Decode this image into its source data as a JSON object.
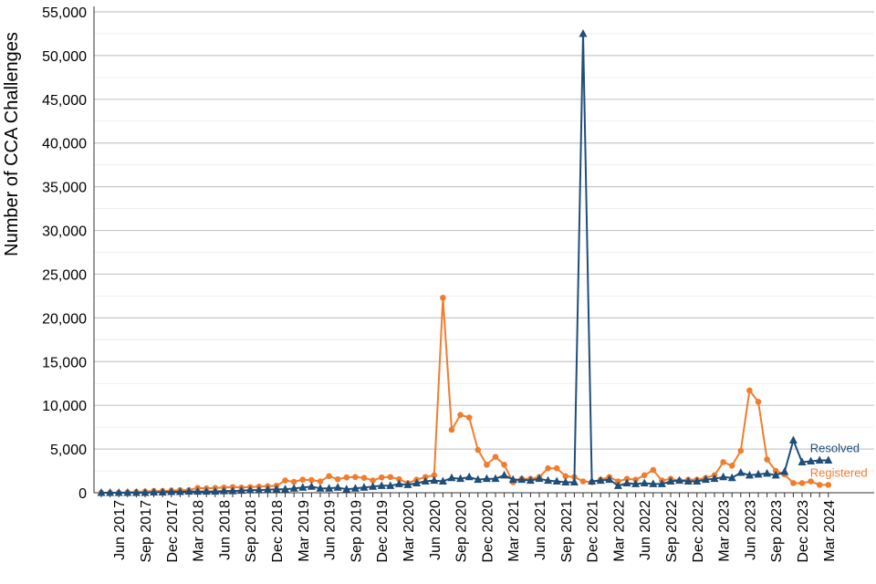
{
  "chart_data": {
    "type": "line",
    "ylabel": "Number of CCA Challenges",
    "xlabel": "",
    "ylim": [
      0,
      55000
    ],
    "y_ticks": [
      0,
      5000,
      10000,
      15000,
      20000,
      25000,
      30000,
      35000,
      40000,
      45000,
      50000,
      55000
    ],
    "y_tick_labels": [
      "0",
      "5,000",
      "10,000",
      "15,000",
      "20,000",
      "25,000",
      "30,000",
      "35,000",
      "40,000",
      "45,000",
      "50,000",
      "55,000"
    ],
    "grid": "horizontal",
    "categories": [
      "Apr 2017",
      "May 2017",
      "Jun 2017",
      "Jul 2017",
      "Aug 2017",
      "Sep 2017",
      "Oct 2017",
      "Nov 2017",
      "Dec 2017",
      "Jan 2018",
      "Feb 2018",
      "Mar 2018",
      "Apr 2018",
      "May 2018",
      "Jun 2018",
      "Jul 2018",
      "Aug 2018",
      "Sep 2018",
      "Oct 2018",
      "Nov 2018",
      "Dec 2018",
      "Jan 2019",
      "Feb 2019",
      "Mar 2019",
      "Apr 2019",
      "May 2019",
      "Jun 2019",
      "Jul 2019",
      "Aug 2019",
      "Sep 2019",
      "Oct 2019",
      "Nov 2019",
      "Dec 2019",
      "Jan 2020",
      "Feb 2020",
      "Mar 2020",
      "Apr 2020",
      "May 2020",
      "Jun 2020",
      "Jul 2020",
      "Aug 2020",
      "Sep 2020",
      "Oct 2020",
      "Nov 2020",
      "Dec 2020",
      "Jan 2021",
      "Feb 2021",
      "Mar 2021",
      "Apr 2021",
      "May 2021",
      "Jun 2021",
      "Jul 2021",
      "Aug 2021",
      "Sep 2021",
      "Oct 2021",
      "Nov 2021",
      "Dec 2021",
      "Jan 2022",
      "Feb 2022",
      "Mar 2022",
      "Apr 2022",
      "May 2022",
      "Jun 2022",
      "Jul 2022",
      "Aug 2022",
      "Sep 2022",
      "Oct 2022",
      "Nov 2022",
      "Dec 2022",
      "Jan 2023",
      "Feb 2023",
      "Mar 2023",
      "Apr 2023",
      "May 2023",
      "Jun 2023",
      "Jul 2023",
      "Aug 2023",
      "Sep 2023",
      "Oct 2023",
      "Nov 2023",
      "Dec 2023",
      "Jan 2024",
      "Feb 2024",
      "Mar 2024"
    ],
    "x_tick_labels": [
      "Jun 2017",
      "Sep 2017",
      "Dec 2017",
      "Mar 2018",
      "Jun 2018",
      "Sep 2018",
      "Dec 2018",
      "Mar 2019",
      "Jun 2019",
      "Sep 2019",
      "Dec 2019",
      "Mar 2020",
      "Jun 2020",
      "Sep 2020",
      "Dec 2020",
      "Mar 2021",
      "Jun 2021",
      "Sep 2021",
      "Dec 2021",
      "Mar 2022",
      "Jun 2022",
      "Sep 2022",
      "Dec 2022",
      "Mar 2023",
      "Jun 2023",
      "Sep 2023",
      "Dec 2023",
      "Mar 2024"
    ],
    "series": [
      {
        "name": "Registered",
        "color": "#f07d2e",
        "marker": "circle",
        "values": [
          0,
          0,
          0,
          50,
          100,
          150,
          200,
          200,
          250,
          300,
          300,
          550,
          500,
          550,
          600,
          650,
          600,
          650,
          700,
          750,
          800,
          1400,
          1250,
          1500,
          1450,
          1300,
          1900,
          1550,
          1750,
          1800,
          1700,
          1400,
          1750,
          1800,
          1550,
          1100,
          1500,
          1800,
          2000,
          22300,
          7200,
          8900,
          8600,
          4900,
          3200,
          4100,
          3200,
          1200,
          1600,
          1600,
          1800,
          2800,
          2800,
          1900,
          1800,
          1300,
          1200,
          1500,
          1800,
          1300,
          1600,
          1500,
          2000,
          2600,
          1400,
          1600,
          1400,
          1500,
          1500,
          1700,
          2000,
          3500,
          3100,
          4800,
          11700,
          10400,
          3800,
          2500,
          2100,
          1100,
          1100,
          1300,
          900,
          900
        ],
        "end_label": "Registered"
      },
      {
        "name": "Resolved",
        "color": "#1f4e79",
        "marker": "triangle",
        "values": [
          0,
          0,
          0,
          0,
          0,
          0,
          50,
          50,
          100,
          100,
          150,
          150,
          150,
          150,
          200,
          200,
          250,
          300,
          300,
          350,
          400,
          400,
          500,
          600,
          700,
          500,
          500,
          600,
          400,
          500,
          600,
          700,
          800,
          800,
          1000,
          900,
          1100,
          1300,
          1400,
          1300,
          1700,
          1600,
          1800,
          1500,
          1600,
          1600,
          2000,
          1500,
          1500,
          1400,
          1600,
          1400,
          1300,
          1200,
          1200,
          52500,
          1300,
          1400,
          1500,
          800,
          1100,
          1000,
          1100,
          1000,
          1000,
          1300,
          1400,
          1300,
          1300,
          1500,
          1600,
          1800,
          1700,
          2300,
          2000,
          2100,
          2200,
          2000,
          2400,
          6000,
          3500,
          3600,
          3700,
          3700
        ],
        "end_label": "Resolved"
      }
    ]
  }
}
